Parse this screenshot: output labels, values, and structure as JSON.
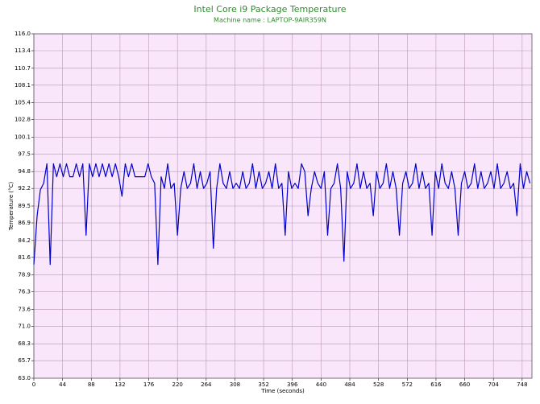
{
  "chart_data": {
    "type": "line",
    "title": "Intel Core i9 Package Temperature",
    "subtitle": "Machine name : LAPTOP-9AIR359N",
    "x_label": "Time (seconds)",
    "y_label": "Temperature (°C)",
    "color": "#0000cc",
    "grid": true,
    "xlim": [
      0,
      763
    ],
    "ylim": [
      63,
      116
    ],
    "xticks": [
      0,
      44,
      88,
      132,
      176,
      220,
      264,
      308,
      352,
      396,
      440,
      484,
      528,
      572,
      616,
      660,
      704,
      748
    ],
    "yticks": [
      {
        "value": 63,
        "label": "63.0"
      },
      65.7,
      68.3,
      {
        "value": 71,
        "label": "71.0"
      },
      73.6,
      76.3,
      78.9,
      81.6,
      84.2,
      86.9,
      89.5,
      92.2,
      94.8,
      97.5,
      100.1,
      102.8,
      105.4,
      108.1,
      110.7,
      113.4,
      {
        "value": 116,
        "label": "116.0"
      }
    ],
    "x": [
      0,
      5,
      10,
      15,
      20,
      25,
      30,
      35,
      40,
      45,
      50,
      55,
      60,
      65,
      70,
      75,
      80,
      85,
      90,
      95,
      100,
      105,
      110,
      115,
      120,
      125,
      130,
      135,
      140,
      145,
      150,
      155,
      160,
      165,
      170,
      175,
      180,
      185,
      190,
      195,
      200,
      205,
      210,
      215,
      220,
      225,
      230,
      235,
      240,
      245,
      250,
      255,
      260,
      265,
      270,
      275,
      280,
      285,
      290,
      295,
      300,
      305,
      310,
      315,
      320,
      325,
      330,
      335,
      340,
      345,
      350,
      355,
      360,
      365,
      370,
      375,
      380,
      385,
      390,
      395,
      400,
      405,
      410,
      415,
      420,
      425,
      430,
      435,
      440,
      445,
      450,
      455,
      460,
      465,
      470,
      475,
      480,
      485,
      490,
      495,
      500,
      505,
      510,
      515,
      520,
      525,
      530,
      535,
      540,
      545,
      550,
      555,
      560,
      565,
      570,
      575,
      580,
      585,
      590,
      595,
      600,
      605,
      610,
      615,
      620,
      625,
      630,
      635,
      640,
      645,
      650,
      655,
      660,
      665,
      670,
      675,
      680,
      685,
      690,
      695,
      700,
      705,
      710,
      715,
      720,
      725,
      730,
      735,
      740,
      745,
      750,
      755,
      760
    ],
    "values": [
      80.5,
      88,
      92,
      93,
      96,
      80.5,
      96,
      94,
      96,
      94,
      96,
      94,
      94,
      96,
      94,
      96,
      85,
      96,
      94,
      96,
      94,
      96,
      94,
      96,
      94,
      96,
      94,
      91,
      96,
      94,
      96,
      94,
      94,
      94,
      94,
      96,
      94,
      93,
      80.5,
      94,
      92.2,
      96,
      92.2,
      93,
      85,
      92.2,
      94.8,
      92.2,
      93,
      96,
      92.2,
      94.8,
      92.2,
      93,
      94.8,
      83,
      92.2,
      96,
      93,
      92.2,
      94.8,
      92.2,
      93,
      92.2,
      94.8,
      92.2,
      93,
      96,
      92.2,
      94.8,
      92.2,
      93,
      94.8,
      92.2,
      96,
      92.2,
      93,
      85,
      94.8,
      92.2,
      93,
      92.2,
      96,
      94.8,
      88,
      92.2,
      94.8,
      93,
      92.2,
      94.8,
      85,
      92.2,
      93,
      96,
      92.2,
      81,
      94.8,
      92.2,
      93,
      96,
      92.2,
      94.8,
      92.2,
      93,
      88,
      94.8,
      92.2,
      93,
      96,
      92.2,
      94.8,
      92.2,
      85,
      93,
      94.8,
      92.2,
      93,
      96,
      92.2,
      94.8,
      92.2,
      93,
      85,
      94.8,
      92.2,
      96,
      93,
      92.2,
      94.8,
      92.2,
      85,
      93,
      94.8,
      92.2,
      93,
      96,
      92.2,
      94.8,
      92.2,
      93,
      94.8,
      92.2,
      96,
      92.2,
      93,
      94.8,
      92.2,
      93,
      88,
      96,
      92.2,
      94.8,
      93
    ]
  }
}
